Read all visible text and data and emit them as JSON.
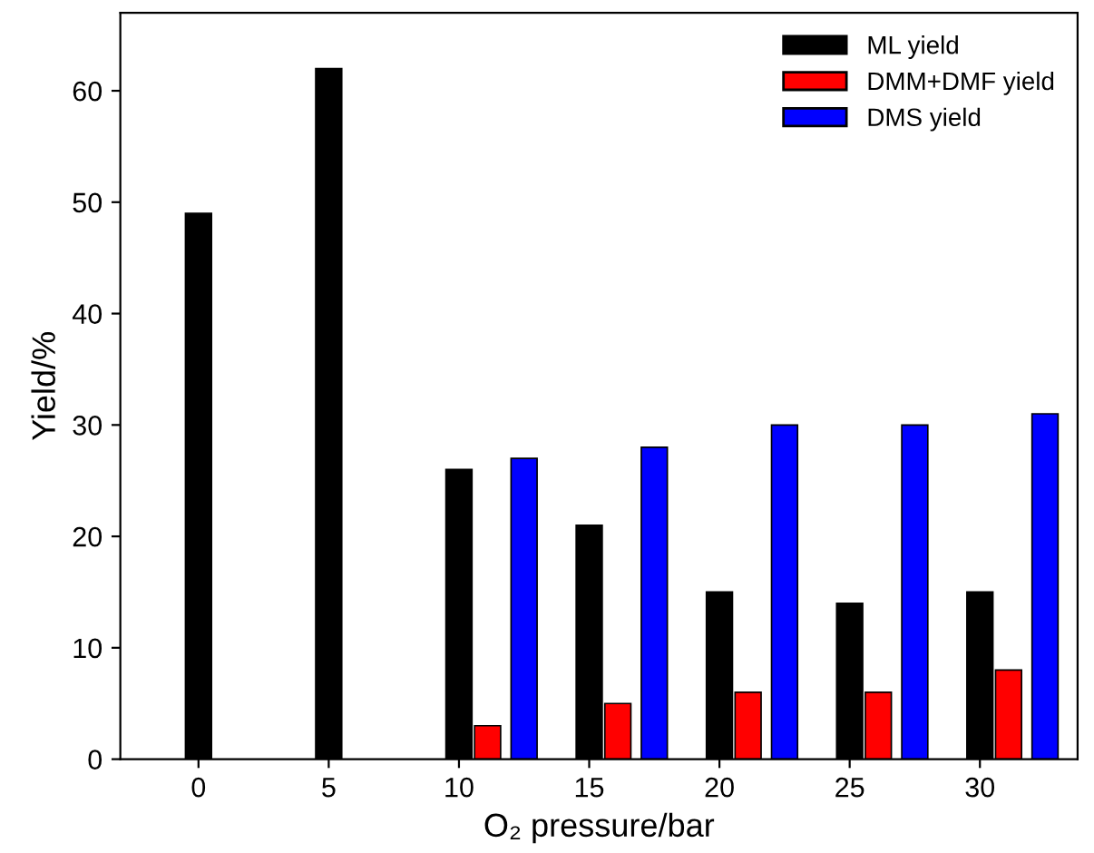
{
  "chart_data": {
    "type": "bar",
    "xlabel": "O₂ pressure/bar",
    "ylabel": "Yield/%",
    "categories": [
      "0",
      "5",
      "10",
      "15",
      "20",
      "25",
      "30"
    ],
    "series": [
      {
        "name": "ML yield",
        "color": "#000000",
        "values": [
          49,
          62,
          26,
          21,
          15,
          14,
          15
        ]
      },
      {
        "name": "DMM+DMF yield",
        "color": "#ff0000",
        "values": [
          null,
          null,
          3,
          5,
          6,
          6,
          8
        ]
      },
      {
        "name": "DMS yield",
        "color": "#0000ff",
        "values": [
          null,
          null,
          27,
          28,
          30,
          30,
          31
        ]
      }
    ],
    "ylim": [
      0,
      67
    ],
    "yticks": [
      0,
      10,
      20,
      30,
      40,
      50,
      60
    ],
    "legend": "top right",
    "grid": false
  }
}
